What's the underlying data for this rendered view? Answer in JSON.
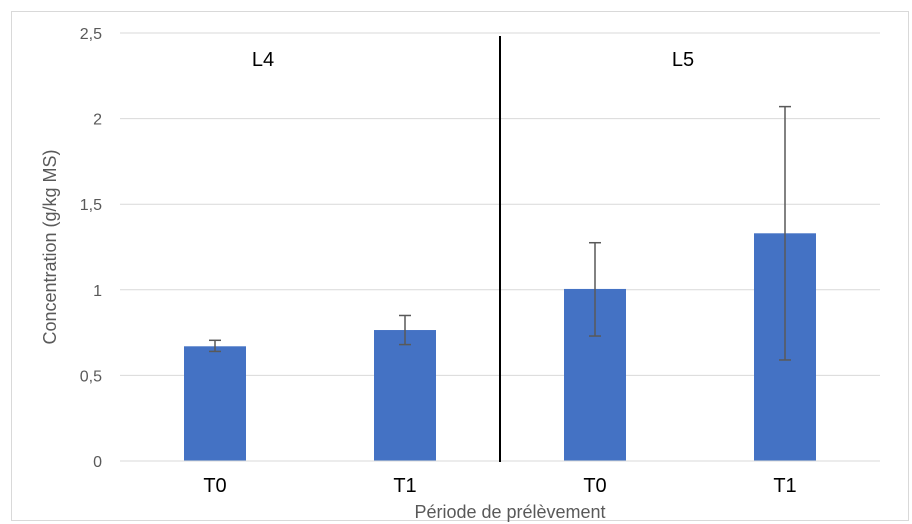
{
  "chart_data": {
    "type": "bar",
    "title": "",
    "xlabel": "Période de prélèvement",
    "ylabel": "Concentration (g/kg MS)",
    "ylim": [
      0,
      2.5
    ],
    "yticks": [
      "0",
      "0,5",
      "1",
      "1,5",
      "2",
      "2,5"
    ],
    "grid": true,
    "groups": [
      "L4",
      "L5"
    ],
    "categories": [
      "T0",
      "T1",
      "T0",
      "T1"
    ],
    "group_of_category": [
      "L4",
      "L4",
      "L5",
      "L5"
    ],
    "values": [
      0.67,
      0.765,
      1.005,
      1.33
    ],
    "errors": [
      {
        "low": 0.64,
        "high": 0.705
      },
      {
        "low": 0.68,
        "high": 0.85
      },
      {
        "low": 0.73,
        "high": 1.275
      },
      {
        "low": 0.59,
        "high": 2.07
      }
    ],
    "bar_color": "#4472c4",
    "error_color": "#595959"
  }
}
